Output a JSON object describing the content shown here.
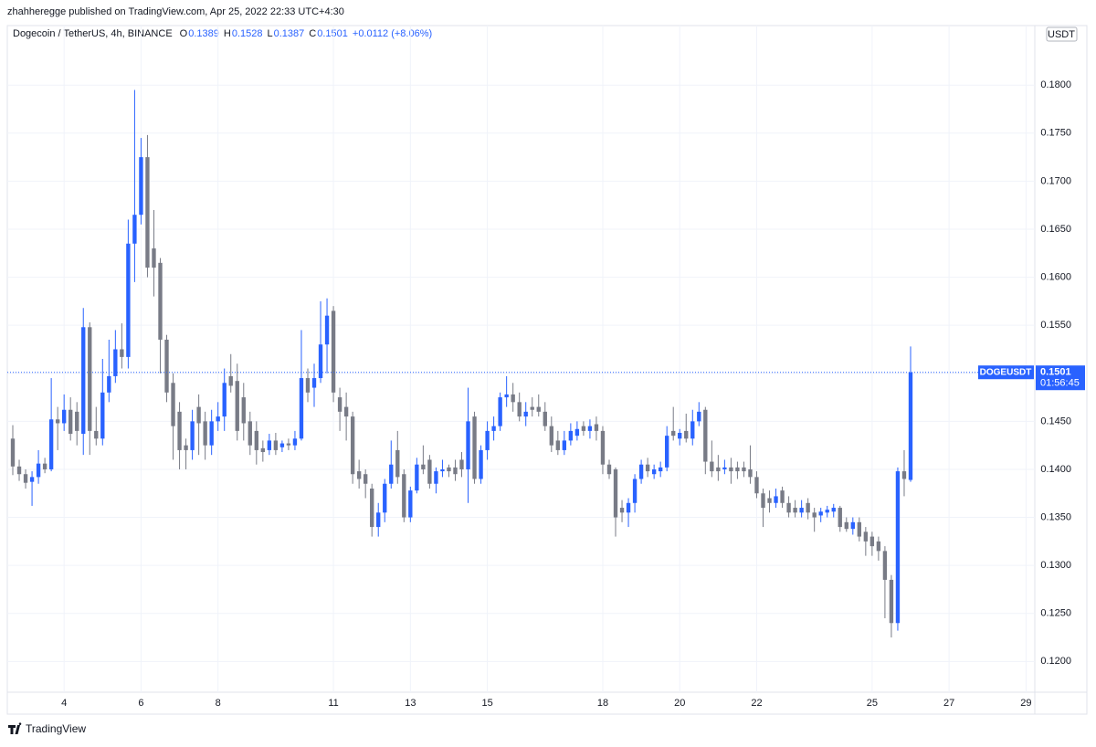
{
  "header": {
    "publisher": "zhahheregge published on TradingView.com, Apr 25, 2022 22:33 UTC+4:30",
    "brand": "TradingView"
  },
  "chart_data": {
    "type": "candlestick",
    "title": "Dogecoin / TetherUS, 4h, BINANCE",
    "legend_values": [
      {
        "key": "O",
        "value": "0.1389"
      },
      {
        "key": "H",
        "value": "0.1528"
      },
      {
        "key": "L",
        "value": "0.1387"
      },
      {
        "key": "C",
        "value": "0.1501"
      }
    ],
    "change": "+0.0112 (+8.06%)",
    "currency": "USDT",
    "up_color": "#2962ff",
    "down_color": "#787b86",
    "last_price": {
      "symbol": "DOGEUSDT",
      "value": 0.1501,
      "countdown": "01:56:45",
      "color": "#2962ff"
    },
    "xlim": [
      -0.855,
      159.37
    ],
    "xticks": [
      {
        "value": 8,
        "label": "4"
      },
      {
        "value": 20,
        "label": "6"
      },
      {
        "value": 32,
        "label": "8"
      },
      {
        "value": 50,
        "label": "11"
      },
      {
        "value": 62,
        "label": "13"
      },
      {
        "value": 74,
        "label": "15"
      },
      {
        "value": 92,
        "label": "18"
      },
      {
        "value": 104,
        "label": "20"
      },
      {
        "value": 116,
        "label": "22"
      },
      {
        "value": 134,
        "label": "25"
      },
      {
        "value": 146,
        "label": "27"
      },
      {
        "value": 158,
        "label": "29"
      }
    ],
    "ylim": [
      0.1168,
      0.1862
    ],
    "yticks": [
      {
        "value": 0.12,
        "label": "0.1200"
      },
      {
        "value": 0.125,
        "label": "0.1250"
      },
      {
        "value": 0.13,
        "label": "0.1300"
      },
      {
        "value": 0.135,
        "label": "0.1350"
      },
      {
        "value": 0.14,
        "label": "0.1400"
      },
      {
        "value": 0.145,
        "label": "0.1450"
      },
      {
        "value": 0.15,
        "label": "0.1500"
      },
      {
        "value": 0.155,
        "label": "0.1550"
      },
      {
        "value": 0.16,
        "label": "0.1600"
      },
      {
        "value": 0.165,
        "label": "0.1650"
      },
      {
        "value": 0.17,
        "label": "0.1700"
      },
      {
        "value": 0.175,
        "label": "0.1750"
      },
      {
        "value": 0.18,
        "label": "0.1800"
      }
    ],
    "grid": true,
    "open": [
      0.1432,
      0.1403,
      0.1395,
      0.1387,
      0.1392,
      0.1406,
      0.14,
      0.1452,
      0.1448,
      0.1462,
      0.146,
      0.1437,
      0.1548,
      0.144,
      0.1432,
      0.148,
      0.1497,
      0.1525,
      0.1517,
      0.1635,
      0.1665,
      0.1725,
      0.163,
      0.1615,
      0.1535,
      0.149,
      0.146,
      0.1425,
      0.142,
      0.1465,
      0.145,
      0.1425,
      0.145,
      0.1455,
      0.1497,
      0.1492,
      0.1475,
      0.145,
      0.144,
      0.1422,
      0.142,
      0.143,
      0.1423,
      0.1427,
      0.1425,
      0.1432,
      0.1495,
      0.1485,
      0.1495,
      0.153,
      0.1565,
      0.1475,
      0.1465,
      0.1455,
      0.1398,
      0.1395,
      0.138,
      0.134,
      0.1355,
      0.1385,
      0.142,
      0.1395,
      0.135,
      0.1378,
      0.1405,
      0.141,
      0.1385,
      0.1398,
      0.1402,
      0.1402,
      0.141,
      0.14,
      0.1455,
      0.139,
      0.142,
      0.144,
      0.1445,
      0.1475,
      0.1478,
      0.147,
      0.1455,
      0.1465,
      0.1465,
      0.146,
      0.1445,
      0.143,
      0.142,
      0.143,
      0.1435,
      0.1445,
      0.144,
      0.1447,
      0.144,
      0.1405,
      0.14,
      0.136,
      0.1355,
      0.1365,
      0.139,
      0.1405,
      0.1395,
      0.1398,
      0.1402,
      0.144,
      0.1432,
      0.144,
      0.1432,
      0.145,
      0.1462,
      0.1408,
      0.1402,
      0.14,
      0.1402,
      0.1402,
      0.1402,
      0.14,
      0.1392,
      0.1375,
      0.137,
      0.1365,
      0.1378,
      0.1365,
      0.136,
      0.1355,
      0.1365,
      0.1355,
      0.1352,
      0.1355,
      0.1356,
      0.136,
      0.1345,
      0.1338,
      0.1345,
      0.1335,
      0.133,
      0.1325,
      0.1315,
      0.1285,
      0.124,
      0.1398,
      0.1389
    ],
    "high": [
      0.1446,
      0.141,
      0.14,
      0.1398,
      0.142,
      0.1412,
      0.1495,
      0.1465,
      0.1478,
      0.1475,
      0.147,
      0.1568,
      0.1553,
      0.1465,
      0.1515,
      0.1535,
      0.1545,
      0.1552,
      0.166,
      0.1795,
      0.1745,
      0.1748,
      0.167,
      0.162,
      0.154,
      0.15,
      0.147,
      0.1432,
      0.1462,
      0.1478,
      0.146,
      0.1462,
      0.147,
      0.1505,
      0.152,
      0.151,
      0.149,
      0.146,
      0.145,
      0.143,
      0.1437,
      0.1438,
      0.143,
      0.1432,
      0.144,
      0.1545,
      0.1505,
      0.151,
      0.1575,
      0.1578,
      0.157,
      0.1485,
      0.148,
      0.146,
      0.141,
      0.14,
      0.1385,
      0.1365,
      0.139,
      0.143,
      0.144,
      0.14,
      0.1382,
      0.1412,
      0.1425,
      0.1415,
      0.1402,
      0.141,
      0.1405,
      0.141,
      0.1418,
      0.1485,
      0.146,
      0.1425,
      0.145,
      0.1455,
      0.148,
      0.1497,
      0.149,
      0.148,
      0.147,
      0.1475,
      0.1478,
      0.147,
      0.1455,
      0.144,
      0.144,
      0.1448,
      0.145,
      0.145,
      0.1452,
      0.1455,
      0.1445,
      0.141,
      0.1402,
      0.1368,
      0.137,
      0.1395,
      0.141,
      0.1412,
      0.1405,
      0.1408,
      0.1445,
      0.1465,
      0.1442,
      0.1458,
      0.1462,
      0.147,
      0.1465,
      0.143,
      0.1415,
      0.141,
      0.1412,
      0.1408,
      0.1408,
      0.1425,
      0.1398,
      0.138,
      0.1378,
      0.138,
      0.1382,
      0.1372,
      0.1368,
      0.1368,
      0.137,
      0.136,
      0.136,
      0.1362,
      0.1364,
      0.1362,
      0.135,
      0.135,
      0.135,
      0.134,
      0.1335,
      0.133,
      0.132,
      0.129,
      0.1402,
      0.142,
      0.1528
    ],
    "low": [
      0.1394,
      0.1388,
      0.138,
      0.1362,
      0.1385,
      0.1396,
      0.1398,
      0.142,
      0.144,
      0.143,
      0.1425,
      0.1415,
      0.1415,
      0.1425,
      0.1425,
      0.147,
      0.149,
      0.1505,
      0.1505,
      0.1595,
      0.1655,
      0.16,
      0.158,
      0.15,
      0.147,
      0.141,
      0.14,
      0.14,
      0.141,
      0.1415,
      0.141,
      0.1415,
      0.144,
      0.144,
      0.148,
      0.143,
      0.143,
      0.1415,
      0.1405,
      0.1408,
      0.1415,
      0.1415,
      0.1418,
      0.142,
      0.142,
      0.143,
      0.147,
      0.1465,
      0.149,
      0.15,
      0.147,
      0.144,
      0.143,
      0.1385,
      0.138,
      0.137,
      0.133,
      0.133,
      0.1345,
      0.138,
      0.1385,
      0.1345,
      0.1345,
      0.1375,
      0.1395,
      0.138,
      0.1375,
      0.1392,
      0.1392,
      0.1388,
      0.1392,
      0.1365,
      0.1385,
      0.1385,
      0.141,
      0.143,
      0.144,
      0.1465,
      0.146,
      0.145,
      0.1445,
      0.1455,
      0.1455,
      0.144,
      0.1418,
      0.1415,
      0.1415,
      0.1425,
      0.143,
      0.1435,
      0.1432,
      0.143,
      0.1395,
      0.139,
      0.133,
      0.1345,
      0.134,
      0.1355,
      0.1385,
      0.1392,
      0.139,
      0.1392,
      0.1398,
      0.143,
      0.1425,
      0.1428,
      0.1425,
      0.1445,
      0.1395,
      0.1392,
      0.1388,
      0.1395,
      0.1385,
      0.139,
      0.1392,
      0.1385,
      0.137,
      0.134,
      0.1355,
      0.136,
      0.136,
      0.135,
      0.135,
      0.135,
      0.1348,
      0.1335,
      0.1345,
      0.135,
      0.135,
      0.1335,
      0.1335,
      0.1332,
      0.1325,
      0.131,
      0.131,
      0.1305,
      0.1245,
      0.1225,
      0.1232,
      0.1372,
      0.1387
    ],
    "close": [
      0.1403,
      0.1395,
      0.1386,
      0.1392,
      0.1406,
      0.14,
      0.1452,
      0.1448,
      0.1462,
      0.1437,
      0.144,
      0.1548,
      0.144,
      0.1432,
      0.148,
      0.1497,
      0.1525,
      0.1517,
      0.1635,
      0.1665,
      0.1725,
      0.161,
      0.161,
      0.1535,
      0.148,
      0.1445,
      0.142,
      0.142,
      0.145,
      0.1448,
      0.1425,
      0.145,
      0.1455,
      0.149,
      0.1487,
      0.144,
      0.1448,
      0.1425,
      0.142,
      0.1418,
      0.143,
      0.142,
      0.1427,
      0.1425,
      0.1432,
      0.1495,
      0.148,
      0.1495,
      0.153,
      0.156,
      0.148,
      0.146,
      0.1455,
      0.1395,
      0.139,
      0.1385,
      0.134,
      0.1355,
      0.1385,
      0.1405,
      0.1392,
      0.135,
      0.1378,
      0.1405,
      0.14,
      0.1385,
      0.1398,
      0.14,
      0.1398,
      0.1395,
      0.14,
      0.145,
      0.139,
      0.142,
      0.144,
      0.1445,
      0.1475,
      0.1478,
      0.147,
      0.1455,
      0.146,
      0.1462,
      0.146,
      0.1445,
      0.1425,
      0.142,
      0.143,
      0.144,
      0.1442,
      0.144,
      0.1445,
      0.144,
      0.1405,
      0.1395,
      0.135,
      0.1355,
      0.1365,
      0.139,
      0.1405,
      0.1398,
      0.14,
      0.1402,
      0.1435,
      0.1435,
      0.1438,
      0.1432,
      0.145,
      0.146,
      0.1408,
      0.1398,
      0.1398,
      0.1402,
      0.1398,
      0.1398,
      0.1398,
      0.1392,
      0.1375,
      0.136,
      0.1365,
      0.1372,
      0.1365,
      0.1355,
      0.1355,
      0.136,
      0.1355,
      0.135,
      0.1356,
      0.1358,
      0.136,
      0.134,
      0.1338,
      0.1345,
      0.133,
      0.1325,
      0.132,
      0.1315,
      0.1285,
      0.124,
      0.1398,
      0.139,
      0.1501
    ]
  }
}
